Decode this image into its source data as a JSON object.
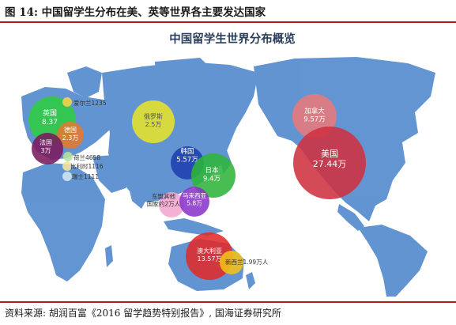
{
  "figure_caption": "图 14:  中国留学生分布在美、英等世界各主要发达国家",
  "map_title": "中国留学生世界分布概览",
  "source_note": "资料来源:  胡润百富《2016 留学趋势特别报告》, 国海证券研究所",
  "colors": {
    "rule": "#b31b1b",
    "ocean": "#ffffff",
    "land": "#5b8fd0"
  },
  "bubbles": [
    {
      "id": "uk",
      "country": "英国",
      "value": "8.37",
      "color": "#2ecc40"
    },
    {
      "id": "ireland",
      "label": "爱尔兰1235",
      "color": "#f7d34a"
    },
    {
      "id": "germany",
      "country": "德国",
      "value": "2.3万",
      "color": "#e5792c"
    },
    {
      "id": "france",
      "country": "法国",
      "value": "3万",
      "color": "#7a1a5c"
    },
    {
      "id": "netherlands",
      "label": "荷兰4658",
      "color": "#b8e3a0"
    },
    {
      "id": "belgium",
      "label": "比利时1116",
      "color": "#f3e6a0"
    },
    {
      "id": "switzerland",
      "label": "瑞士1111",
      "color": "#cfe6f5"
    },
    {
      "id": "russia",
      "country": "俄罗斯",
      "value": "2.5万",
      "color": "#e6e42a"
    },
    {
      "id": "korea",
      "country": "韩国",
      "value": "5.57万",
      "color": "#1f3fae"
    },
    {
      "id": "japan",
      "country": "日本",
      "value": "9.4万",
      "color": "#2fb53a"
    },
    {
      "id": "sea",
      "label": "东盟其他国家约2万人",
      "color": "#f4a6cf"
    },
    {
      "id": "malaysia",
      "country": "马来西亚",
      "value": "5.8万",
      "color": "#8a36c9"
    },
    {
      "id": "canada",
      "country": "加拿大",
      "value": "9.57万",
      "color": "#e87a7a"
    },
    {
      "id": "usa",
      "country": "美国",
      "value": "27.44万",
      "color": "#cf3140"
    },
    {
      "id": "australia",
      "country": "澳大利亚",
      "value": "13.57万",
      "color": "#e02a2a"
    },
    {
      "id": "newzealand",
      "label": "新西兰1.99万人",
      "color": "#f2c21a"
    }
  ]
}
